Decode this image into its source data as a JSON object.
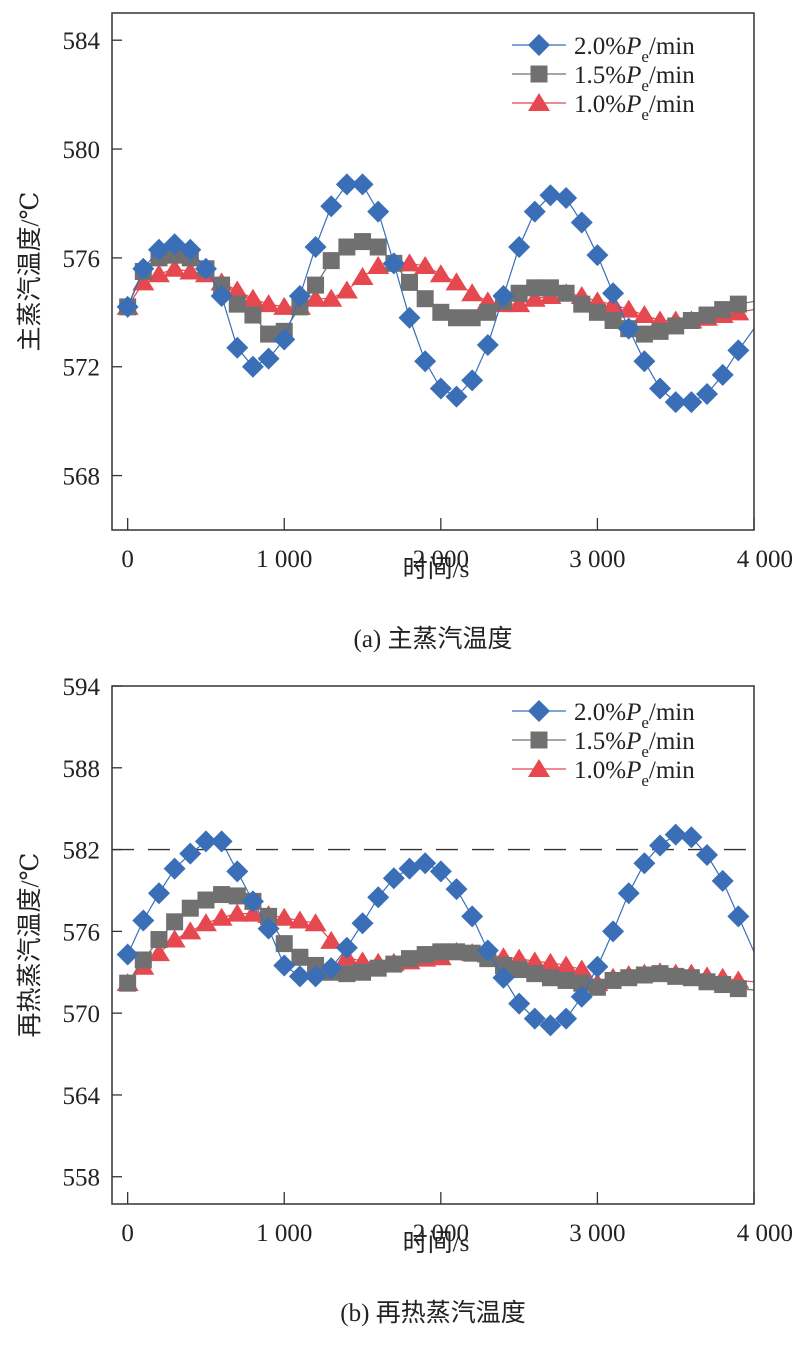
{
  "chart_data": [
    {
      "type": "line",
      "id": "main-steam",
      "title": "",
      "caption": "(a) 主蒸汽温度",
      "xlabel": "时间/s",
      "ylabel": "主蒸汽温度/℃",
      "xlim": [
        -100,
        4000
      ],
      "ylim": [
        566,
        585
      ],
      "xticks": [
        0,
        1000,
        2000,
        3000,
        4000
      ],
      "xtick_labels": [
        "0",
        "1 000",
        "2 000",
        "3 000",
        "4 000"
      ],
      "yticks": [
        568,
        572,
        576,
        580,
        584
      ],
      "ytick_labels": [
        "568",
        "572",
        "576",
        "580",
        "584"
      ],
      "grid": false,
      "legend_position": "top-right",
      "reference_line": null,
      "x": [
        0,
        100,
        200,
        300,
        400,
        500,
        600,
        700,
        800,
        900,
        1000,
        1100,
        1200,
        1300,
        1400,
        1500,
        1600,
        1700,
        1800,
        1900,
        2000,
        2100,
        2200,
        2300,
        2400,
        2500,
        2600,
        2700,
        2800,
        2900,
        3000,
        3100,
        3200,
        3300,
        3400,
        3500,
        3600,
        3700,
        3800,
        3900
      ],
      "line_end": {
        "x": 4000
      },
      "series": [
        {
          "name": "2.0%Pe/min",
          "label_main": "2.0%",
          "label_var": "P",
          "label_sub": "e",
          "label_unit": "/min",
          "marker": "diamond",
          "color": "#3a6fb8",
          "values": [
            574.2,
            575.6,
            576.3,
            576.5,
            576.3,
            575.6,
            574.6,
            572.7,
            572.0,
            572.3,
            573.0,
            574.6,
            576.4,
            577.9,
            578.7,
            578.7,
            577.7,
            575.8,
            573.8,
            572.2,
            571.2,
            570.9,
            571.5,
            572.8,
            574.6,
            576.4,
            577.7,
            578.3,
            578.2,
            577.3,
            576.1,
            574.7,
            573.4,
            572.2,
            571.2,
            570.7,
            570.7,
            571.0,
            571.7,
            572.6
          ],
          "end_value": 573.4
        },
        {
          "name": "1.5%Pe/min",
          "label_main": "1.5%",
          "label_var": "P",
          "label_sub": "e",
          "label_unit": "/min",
          "marker": "square",
          "color": "#707070",
          "values": [
            574.2,
            575.5,
            576.0,
            576.1,
            576.0,
            575.6,
            575.0,
            574.3,
            573.9,
            573.2,
            573.3,
            574.2,
            575.0,
            575.9,
            576.4,
            576.6,
            576.4,
            575.8,
            575.1,
            574.5,
            574.0,
            573.8,
            573.8,
            574.0,
            574.4,
            574.7,
            574.9,
            574.9,
            574.7,
            574.3,
            574.0,
            573.7,
            573.4,
            573.2,
            573.3,
            573.5,
            573.7,
            573.9,
            574.1,
            574.3
          ],
          "end_value": 574.4
        },
        {
          "name": "1.0%Pe/min",
          "label_main": "1.0%",
          "label_var": "P",
          "label_sub": "e",
          "label_unit": "/min",
          "marker": "triangle",
          "color": "#e5484f",
          "values": [
            574.2,
            575.1,
            575.4,
            575.6,
            575.5,
            575.4,
            575.1,
            574.8,
            574.5,
            574.3,
            574.2,
            574.2,
            574.5,
            574.5,
            574.8,
            575.3,
            575.7,
            575.8,
            575.8,
            575.7,
            575.4,
            575.1,
            574.7,
            574.4,
            574.3,
            574.3,
            574.5,
            574.6,
            574.7,
            574.6,
            574.4,
            574.3,
            574.1,
            573.9,
            573.7,
            573.7,
            573.7,
            573.8,
            573.9,
            574.0
          ],
          "end_value": 574.1
        }
      ]
    },
    {
      "type": "line",
      "id": "reheat-steam",
      "title": "",
      "caption": "(b) 再热蒸汽温度",
      "xlabel": "时间/s",
      "ylabel": "再热蒸汽温度/℃",
      "xlim": [
        -100,
        4000
      ],
      "ylim": [
        556,
        594
      ],
      "xticks": [
        0,
        1000,
        2000,
        3000,
        4000
      ],
      "xtick_labels": [
        "0",
        "1 000",
        "2 000",
        "3 000",
        "4 000"
      ],
      "yticks": [
        558,
        564,
        570,
        576,
        582,
        588,
        594
      ],
      "ytick_labels": [
        "558",
        "564",
        "570",
        "576",
        "582",
        "588",
        "594"
      ],
      "grid": false,
      "legend_position": "top-right",
      "reference_line": {
        "y": 582,
        "style": "dashed",
        "color": "#333333"
      },
      "x": [
        0,
        100,
        200,
        300,
        400,
        500,
        600,
        700,
        800,
        900,
        1000,
        1100,
        1200,
        1300,
        1400,
        1500,
        1600,
        1700,
        1800,
        1900,
        2000,
        2100,
        2200,
        2300,
        2400,
        2500,
        2600,
        2700,
        2800,
        2900,
        3000,
        3100,
        3200,
        3300,
        3400,
        3500,
        3600,
        3700,
        3800,
        3900
      ],
      "line_end": {
        "x": 4000
      },
      "series": [
        {
          "name": "2.0%Pe/min",
          "label_main": "2.0%",
          "label_var": "P",
          "label_sub": "e",
          "label_unit": "/min",
          "marker": "diamond",
          "color": "#3a6fb8",
          "values": [
            574.3,
            576.8,
            578.8,
            580.6,
            581.7,
            582.6,
            582.6,
            580.4,
            578.2,
            576.2,
            573.5,
            572.7,
            572.7,
            573.3,
            574.8,
            576.6,
            578.5,
            579.9,
            580.6,
            581.0,
            580.4,
            579.1,
            577.1,
            574.6,
            572.6,
            570.7,
            569.6,
            569.1,
            569.6,
            571.2,
            573.4,
            576.0,
            578.8,
            581.0,
            582.3,
            583.1,
            582.9,
            581.6,
            579.7,
            577.1
          ],
          "end_value": 574.5
        },
        {
          "name": "1.5%Pe/min",
          "label_main": "1.5%",
          "label_var": "P",
          "label_sub": "e",
          "label_unit": "/min",
          "marker": "square",
          "color": "#707070",
          "values": [
            572.2,
            573.9,
            575.4,
            576.7,
            577.7,
            578.3,
            578.7,
            578.6,
            578.2,
            577.1,
            575.1,
            574.1,
            573.5,
            573.0,
            572.9,
            573.0,
            573.3,
            573.6,
            574.0,
            574.3,
            574.5,
            574.5,
            574.4,
            574.0,
            573.5,
            573.2,
            572.9,
            572.6,
            572.4,
            572.2,
            571.9,
            572.4,
            572.6,
            572.8,
            572.9,
            572.7,
            572.6,
            572.3,
            572.1,
            571.8
          ],
          "end_value": 571.7
        },
        {
          "name": "1.0%Pe/min",
          "label_main": "1.0%",
          "label_var": "P",
          "label_sub": "e",
          "label_unit": "/min",
          "marker": "triangle",
          "color": "#e5484f",
          "values": [
            572.2,
            573.4,
            574.4,
            575.4,
            576.0,
            576.6,
            577.0,
            577.3,
            577.3,
            577.2,
            577.0,
            576.8,
            576.6,
            575.3,
            574.1,
            573.8,
            573.7,
            573.7,
            573.8,
            574.0,
            574.1,
            574.5,
            574.4,
            574.3,
            574.1,
            574.0,
            573.8,
            573.7,
            573.5,
            573.2,
            572.2,
            572.6,
            572.8,
            572.9,
            573.0,
            572.9,
            572.9,
            572.7,
            572.6,
            572.4
          ],
          "end_value": 572.3
        }
      ]
    }
  ]
}
